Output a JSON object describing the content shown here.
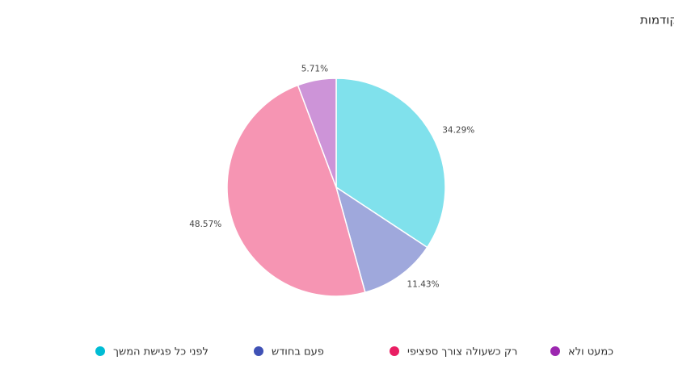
{
  "chart_data": {
    "type": "pie",
    "title": "כמה פעמים בממוצע את/ה חוזר/ת לקרוא תיעוד של פגישות קודמות",
    "categories": [
      "לפני כל פגישת המשך",
      "פעם בחודש",
      "רק כשעולה צורך ספציפי",
      "כמעט ולא"
    ],
    "values": [
      34.29,
      11.43,
      48.57,
      5.71
    ],
    "value_labels": [
      "34.29%",
      "11.43%",
      "48.57%",
      "5.71%"
    ],
    "colors": [
      "#80e1ec",
      "#9fa8dc",
      "#f695b3",
      "#cd94d8"
    ],
    "legend_colors": [
      "#00bcd4",
      "#3f51b5",
      "#e91e63",
      "#9c27b0"
    ],
    "legend": "bottom"
  }
}
